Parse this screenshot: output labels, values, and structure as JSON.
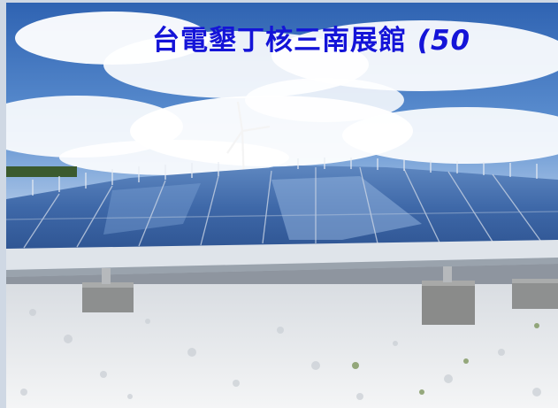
{
  "caption": {
    "title": "台電墾丁核三南展館",
    "paren_text": "(50"
  },
  "colors": {
    "caption": "#1414d8",
    "sky": "#3f74bf",
    "panel": "#4a77b4",
    "pebbles": "#eef0f2"
  }
}
